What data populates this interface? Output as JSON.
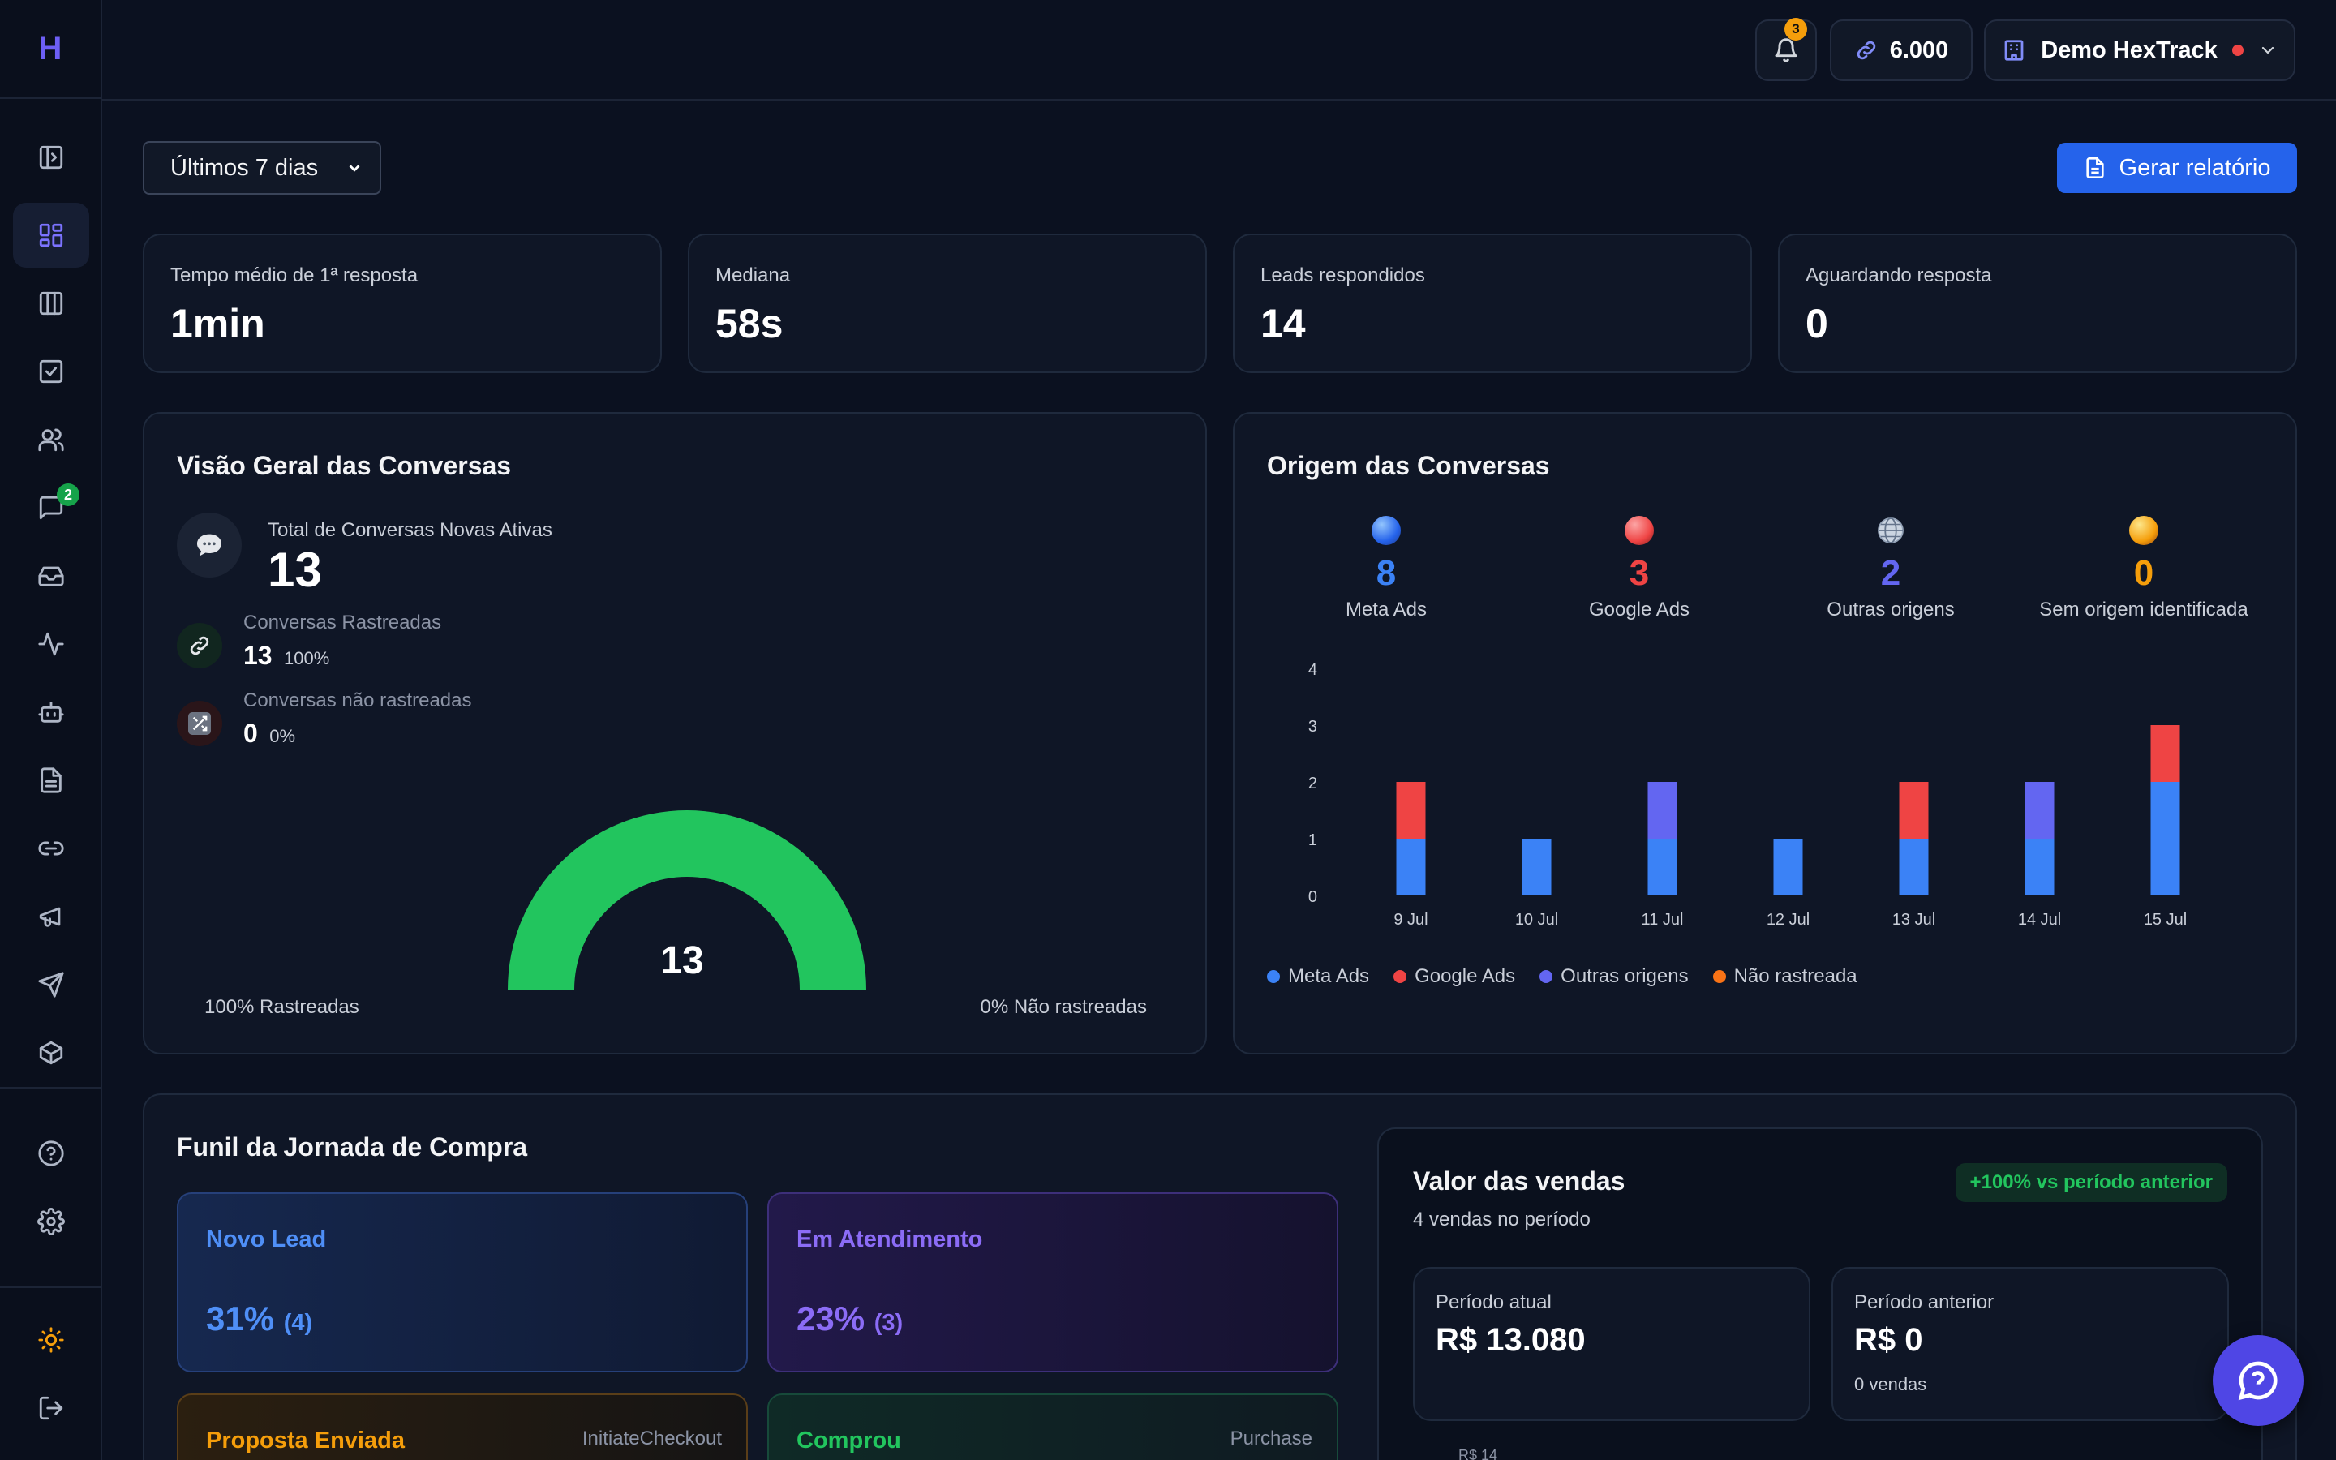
{
  "app": {
    "logo_letter": "H"
  },
  "sidebar": {
    "chat_badge": "2",
    "icons": [
      "panel-toggle-icon",
      "dashboard-icon",
      "kanban-icon",
      "tasks-icon",
      "users-icon",
      "chat-icon",
      "inbox-icon",
      "activity-icon",
      "bot-icon",
      "document-icon",
      "link-icon",
      "megaphone-icon",
      "send-icon",
      "package-icon",
      "help-icon",
      "settings-icon",
      "sun-icon",
      "logout-icon"
    ]
  },
  "topbar": {
    "notifications_count": "3",
    "credits": "6.000",
    "workspace": "Demo HexTrack"
  },
  "filters": {
    "period": "Últimos 7 dias",
    "report_button": "Gerar relatório"
  },
  "stats": [
    {
      "label": "Tempo médio de 1ª resposta",
      "value": "1min"
    },
    {
      "label": "Mediana",
      "value": "58s"
    },
    {
      "label": "Leads respondidos",
      "value": "14"
    },
    {
      "label": "Aguardando resposta",
      "value": "0"
    }
  ],
  "overview": {
    "title": "Visão Geral das Conversas",
    "total_label": "Total de Conversas Novas Ativas",
    "total_value": "13",
    "tracked_label": "Conversas Rastreadas",
    "tracked_value": "13",
    "tracked_pct": "100%",
    "untracked_label": "Conversas não rastreadas",
    "untracked_value": "0",
    "untracked_pct": "0%",
    "gauge_value": "13",
    "gauge_fraction": 1.0,
    "left_caption": "100% Rastreadas",
    "right_caption": "0% Não rastreadas"
  },
  "origin": {
    "title": "Origem das Conversas",
    "sources": [
      {
        "value": "8",
        "label": "Meta Ads",
        "color": "#3b82f6"
      },
      {
        "value": "3",
        "label": "Google Ads",
        "color": "#ef4444"
      },
      {
        "value": "2",
        "label": "Outras origens",
        "color": "#6366f1"
      },
      {
        "value": "0",
        "label": "Sem origem identificada",
        "color": "#f59e0b"
      }
    ],
    "legend": [
      {
        "label": "Meta Ads",
        "color": "#3b82f6"
      },
      {
        "label": "Google Ads",
        "color": "#ef4444"
      },
      {
        "label": "Outras origens",
        "color": "#6366f1"
      },
      {
        "label": "Não rastreada",
        "color": "#f97316"
      }
    ]
  },
  "chart_data": {
    "type": "bar",
    "stacked": true,
    "categories": [
      "9 Jul",
      "10 Jul",
      "11 Jul",
      "12 Jul",
      "13 Jul",
      "14 Jul",
      "15 Jul"
    ],
    "series": [
      {
        "name": "Meta Ads",
        "color": "#3b82f6",
        "values": [
          1,
          1,
          1,
          1,
          1,
          1,
          2
        ]
      },
      {
        "name": "Google Ads",
        "color": "#ef4444",
        "values": [
          1,
          0,
          0,
          0,
          1,
          0,
          1
        ]
      },
      {
        "name": "Outras origens",
        "color": "#6366f1",
        "values": [
          0,
          0,
          1,
          0,
          0,
          1,
          0
        ]
      },
      {
        "name": "Não rastreada",
        "color": "#f97316",
        "values": [
          0,
          0,
          0,
          0,
          0,
          0,
          0
        ]
      }
    ],
    "yticks": [
      "0",
      "1",
      "2",
      "3",
      "4"
    ],
    "ylim": [
      0,
      4
    ],
    "grid": false,
    "legend_position": "bottom-left"
  },
  "funnel": {
    "title": "Funil da Jornada de Compra",
    "stages": [
      {
        "title": "Novo Lead",
        "pct": "31%",
        "count": "(4)",
        "tag": ""
      },
      {
        "title": "Em Atendimento",
        "pct": "23%",
        "count": "(3)",
        "tag": ""
      },
      {
        "title": "Proposta Enviada",
        "pct": "",
        "count": "",
        "tag": "InitiateCheckout"
      },
      {
        "title": "Comprou",
        "pct": "",
        "count": "",
        "tag": "Purchase"
      }
    ]
  },
  "sales": {
    "title": "Valor das vendas",
    "subtitle": "4 vendas no período",
    "badge": "+100% vs período anterior",
    "current_label": "Período atual",
    "current_value": "R$ 13.080",
    "previous_label": "Período anterior",
    "previous_value": "R$ 0",
    "previous_sub": "0 vendas",
    "cut_label": "R$ 14"
  }
}
